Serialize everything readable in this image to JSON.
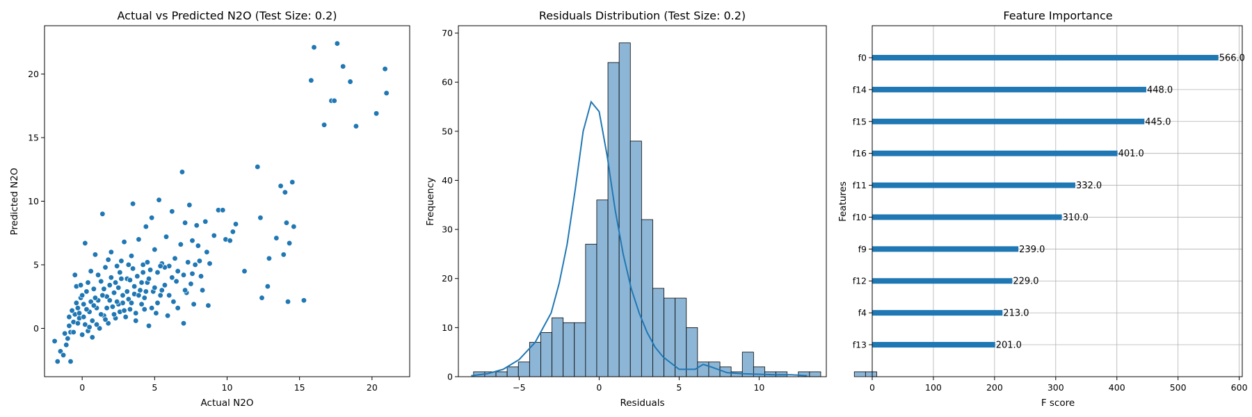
{
  "chart_data": [
    {
      "type": "scatter",
      "title": "Actual vs Predicted N2O (Test Size: 0.2)",
      "xlabel": "Actual N2O",
      "ylabel": "Predicted N2O",
      "xlim": [
        -2.6,
        22.6
      ],
      "ylim": [
        -3.8,
        23.8
      ],
      "xticks": [
        0,
        5,
        10,
        15,
        20
      ],
      "yticks": [
        0,
        5,
        10,
        15,
        20
      ],
      "color": "#1f77b4",
      "points": [
        [
          -1.9,
          -1.0
        ],
        [
          -1.7,
          -2.6
        ],
        [
          -1.5,
          -1.8
        ],
        [
          -1.3,
          -2.1
        ],
        [
          -1.2,
          -0.4
        ],
        [
          -1.1,
          -1.3
        ],
        [
          -1.0,
          -0.8
        ],
        [
          -0.9,
          0.2
        ],
        [
          -0.8,
          -2.6
        ],
        [
          -0.8,
          -0.3
        ],
        [
          -0.6,
          0.5
        ],
        [
          -0.5,
          1.1
        ],
        [
          -0.5,
          4.2
        ],
        [
          -0.4,
          3.3
        ],
        [
          -0.3,
          1.6
        ],
        [
          -0.2,
          0.8
        ],
        [
          -0.1,
          2.4
        ],
        [
          0.0,
          -0.5
        ],
        [
          0.1,
          1.9
        ],
        [
          0.2,
          0.3
        ],
        [
          0.2,
          6.7
        ],
        [
          0.3,
          2.9
        ],
        [
          0.4,
          -0.2
        ],
        [
          0.5,
          1.3
        ],
        [
          0.6,
          4.5
        ],
        [
          0.7,
          0.6
        ],
        [
          0.8,
          3.1
        ],
        [
          0.9,
          5.8
        ],
        [
          1.0,
          1.6
        ],
        [
          1.1,
          2.2
        ],
        [
          1.2,
          0.0
        ],
        [
          1.3,
          3.7
        ],
        [
          1.4,
          9.0
        ],
        [
          1.5,
          1.0
        ],
        [
          1.6,
          4.8
        ],
        [
          1.7,
          2.5
        ],
        [
          1.8,
          0.4
        ],
        [
          1.9,
          3.4
        ],
        [
          2.0,
          6.0
        ],
        [
          2.1,
          1.7
        ],
        [
          2.2,
          2.8
        ],
        [
          2.3,
          0.8
        ],
        [
          2.4,
          4.9
        ],
        [
          2.5,
          3.2
        ],
        [
          2.6,
          1.3
        ],
        [
          2.7,
          5.3
        ],
        [
          2.8,
          2.0
        ],
        [
          2.9,
          6.8
        ],
        [
          3.0,
          0.9
        ],
        [
          3.1,
          3.9
        ],
        [
          3.2,
          2.3
        ],
        [
          3.3,
          1.5
        ],
        [
          3.4,
          5.7
        ],
        [
          3.5,
          9.8
        ],
        [
          3.6,
          2.7
        ],
        [
          3.7,
          0.6
        ],
        [
          3.8,
          4.1
        ],
        [
          3.9,
          7.0
        ],
        [
          4.0,
          3.0
        ],
        [
          4.1,
          1.9
        ],
        [
          4.2,
          5.0
        ],
        [
          4.3,
          2.4
        ],
        [
          4.4,
          8.0
        ],
        [
          4.5,
          3.6
        ],
        [
          4.6,
          0.2
        ],
        [
          4.7,
          4.6
        ],
        [
          4.8,
          8.7
        ],
        [
          4.9,
          2.9
        ],
        [
          5.0,
          6.2
        ],
        [
          5.1,
          1.2
        ],
        [
          5.2,
          4.4
        ],
        [
          5.3,
          10.1
        ],
        [
          5.4,
          2.6
        ],
        [
          5.5,
          5.1
        ],
        [
          5.7,
          3.4
        ],
        [
          5.8,
          7.2
        ],
        [
          5.9,
          1.0
        ],
        [
          6.0,
          4.9
        ],
        [
          6.2,
          9.2
        ],
        [
          6.3,
          2.1
        ],
        [
          6.4,
          5.5
        ],
        [
          6.5,
          3.7
        ],
        [
          6.6,
          1.6
        ],
        [
          6.8,
          6.6
        ],
        [
          6.9,
          12.3
        ],
        [
          7.0,
          0.4
        ],
        [
          7.0,
          4.2
        ],
        [
          7.1,
          8.3
        ],
        [
          7.2,
          2.8
        ],
        [
          7.3,
          5.2
        ],
        [
          7.4,
          9.7
        ],
        [
          7.5,
          3.5
        ],
        [
          7.6,
          6.9
        ],
        [
          7.7,
          1.9
        ],
        [
          7.8,
          5.0
        ],
        [
          7.9,
          8.1
        ],
        [
          8.0,
          6.5
        ],
        [
          8.2,
          4.1
        ],
        [
          8.3,
          3.0
        ],
        [
          8.5,
          8.4
        ],
        [
          8.6,
          6.0
        ],
        [
          8.7,
          1.8
        ],
        [
          8.8,
          5.1
        ],
        [
          9.1,
          7.3
        ],
        [
          9.4,
          9.3
        ],
        [
          9.7,
          9.3
        ],
        [
          9.9,
          7.0
        ],
        [
          10.2,
          6.9
        ],
        [
          10.4,
          7.6
        ],
        [
          10.6,
          8.2
        ],
        [
          11.2,
          4.5
        ],
        [
          12.1,
          12.7
        ],
        [
          12.3,
          8.7
        ],
        [
          12.4,
          2.4
        ],
        [
          12.8,
          3.3
        ],
        [
          12.9,
          5.5
        ],
        [
          13.4,
          7.1
        ],
        [
          13.7,
          11.2
        ],
        [
          13.9,
          5.8
        ],
        [
          14.0,
          10.7
        ],
        [
          14.1,
          8.3
        ],
        [
          14.2,
          2.1
        ],
        [
          14.3,
          6.7
        ],
        [
          14.5,
          11.5
        ],
        [
          14.6,
          8.0
        ],
        [
          15.3,
          2.2
        ],
        [
          15.8,
          19.5
        ],
        [
          16.0,
          22.1
        ],
        [
          16.7,
          16.0
        ],
        [
          17.2,
          17.9
        ],
        [
          17.4,
          17.9
        ],
        [
          17.6,
          22.4
        ],
        [
          18.0,
          20.6
        ],
        [
          18.5,
          19.4
        ],
        [
          18.9,
          15.9
        ],
        [
          20.3,
          16.9
        ],
        [
          20.9,
          20.4
        ],
        [
          21.0,
          18.5
        ],
        [
          -0.9,
          0.9
        ],
        [
          -0.7,
          1.4
        ],
        [
          -0.6,
          -0.3
        ],
        [
          -0.4,
          2.0
        ],
        [
          -0.3,
          0.4
        ],
        [
          -0.2,
          1.2
        ],
        [
          0.0,
          2.6
        ],
        [
          0.1,
          0.9
        ],
        [
          0.3,
          1.5
        ],
        [
          0.4,
          3.6
        ],
        [
          0.6,
          2.1
        ],
        [
          0.7,
          -0.7
        ],
        [
          0.8,
          1.8
        ],
        [
          1.0,
          0.3
        ],
        [
          1.1,
          4.2
        ],
        [
          1.3,
          1.1
        ],
        [
          1.4,
          2.6
        ],
        [
          1.6,
          0.7
        ],
        [
          1.7,
          1.6
        ],
        [
          1.9,
          2.2
        ],
        [
          2.0,
          4.0
        ],
        [
          2.2,
          1.1
        ],
        [
          2.3,
          3.6
        ],
        [
          2.5,
          1.9
        ],
        [
          2.6,
          4.4
        ],
        [
          2.8,
          2.6
        ],
        [
          2.9,
          1.4
        ],
        [
          3.1,
          2.9
        ],
        [
          3.2,
          5.0
        ],
        [
          3.4,
          2.0
        ],
        [
          3.6,
          3.3
        ],
        [
          3.7,
          1.2
        ],
        [
          3.9,
          2.6
        ],
        [
          4.1,
          3.6
        ],
        [
          4.3,
          1.5
        ],
        [
          4.4,
          2.9
        ],
        [
          4.6,
          3.9
        ],
        [
          4.8,
          1.6
        ],
        [
          5.0,
          3.2
        ],
        [
          5.2,
          2.0
        ],
        [
          5.5,
          3.0
        ],
        [
          5.7,
          4.8
        ],
        [
          6.0,
          2.6
        ],
        [
          6.2,
          4.0
        ],
        [
          6.6,
          4.5
        ],
        [
          7.1,
          3.0
        ],
        [
          7.6,
          4.3
        ],
        [
          8.1,
          5.3
        ],
        [
          0.5,
          0.1
        ],
        [
          1.5,
          3.1
        ],
        [
          2.4,
          2.1
        ],
        [
          3.3,
          3.8
        ],
        [
          4.2,
          4.4
        ],
        [
          -0.1,
          3.4
        ],
        [
          0.9,
          2.4
        ],
        [
          1.8,
          5.4
        ],
        [
          2.7,
          3.9
        ],
        [
          3.5,
          4.7
        ],
        [
          4.5,
          5.2
        ],
        [
          5.4,
          4.9
        ]
      ]
    },
    {
      "type": "bar",
      "subtype": "histogram_with_kde",
      "title": "Residuals Distribution (Test Size: 0.2)",
      "xlabel": "Residuals",
      "ylabel": "Frequency",
      "xlim": [
        -8.8,
        14.2
      ],
      "ylim": [
        0,
        71.5
      ],
      "xticks": [
        -5,
        0,
        5,
        10
      ],
      "yticks": [
        0,
        10,
        20,
        30,
        40,
        50,
        60,
        70
      ],
      "bin_start": -7.85,
      "bin_width": 0.7,
      "counts": [
        1,
        1,
        1,
        2,
        3,
        7,
        9,
        12,
        11,
        11,
        27,
        36,
        64,
        68,
        48,
        32,
        18,
        16,
        16,
        10,
        3,
        3,
        2,
        1,
        5,
        2,
        1,
        1,
        0,
        1,
        1,
        0,
        0,
        0,
        1,
        1
      ],
      "kde_x": [
        -8,
        -7,
        -6,
        -5,
        -4,
        -3,
        -2.5,
        -2,
        -1.5,
        -1,
        -0.5,
        0,
        0.5,
        1,
        1.5,
        2,
        2.5,
        3,
        3.5,
        4,
        5,
        6,
        6.5,
        7,
        8,
        9,
        10,
        11,
        12,
        13
      ],
      "kde_y": [
        0.2,
        0.6,
        1.5,
        3.5,
        7,
        13,
        19,
        27,
        38,
        50,
        56,
        54,
        45,
        34,
        25,
        18,
        13,
        9,
        6,
        4,
        1.5,
        1.5,
        2.5,
        2,
        0.8,
        0.6,
        0.5,
        0.4,
        0.4,
        0.2
      ],
      "fill_color": "#8db6d6",
      "line_color": "#1f77b4"
    },
    {
      "type": "bar",
      "orientation": "horizontal",
      "title": "Feature Importance",
      "xlabel": "F score",
      "ylabel": "Features",
      "xlim": [
        0,
        605
      ],
      "xticks": [
        0,
        100,
        200,
        300,
        400,
        500,
        600
      ],
      "grid": true,
      "categories": [
        "f0",
        "f14",
        "f15",
        "f16",
        "f11",
        "f10",
        "f9",
        "f12",
        "f4",
        "f13"
      ],
      "values": [
        566,
        448,
        445,
        401,
        332,
        310,
        239,
        229,
        213,
        201
      ],
      "data_labels": [
        "566.0",
        "448.0",
        "445.0",
        "401.0",
        "332.0",
        "310.0",
        "239.0",
        "229.0",
        "213.0",
        "201.0"
      ],
      "color": "#1f77b4"
    }
  ]
}
